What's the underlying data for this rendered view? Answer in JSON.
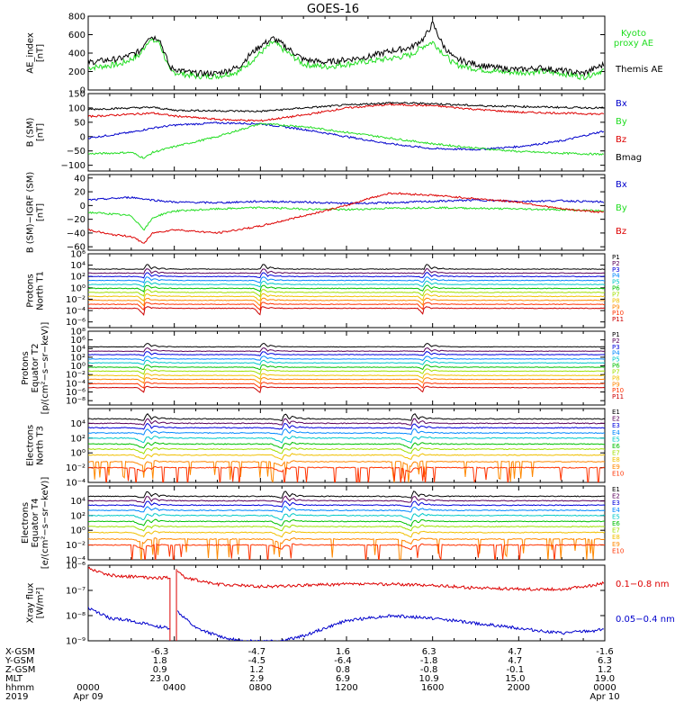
{
  "title": "GOES-16",
  "colors": {
    "black": "#000000",
    "green": "#22dd22",
    "blue": "#0000cc",
    "red": "#dd0000",
    "protons": [
      "#000000",
      "#5a005a",
      "#0000dd",
      "#0088ff",
      "#00c8c8",
      "#00c000",
      "#a0e000",
      "#f0c000",
      "#ff8800",
      "#ff3300",
      "#cc0000"
    ],
    "electrons": [
      "#000000",
      "#5a005a",
      "#0000dd",
      "#0088ff",
      "#00c8c8",
      "#00c000",
      "#a0e000",
      "#f0c000",
      "#ff8800",
      "#ff3300",
      "#cc0000"
    ]
  },
  "chart_data": [
    {
      "id": "ae",
      "type": "line",
      "ylabel": "AE_index\n[nT]",
      "ylim": [
        0,
        800
      ],
      "yticks": [
        "0",
        "200",
        "400",
        "600",
        "800"
      ],
      "series": [
        {
          "name": "Kyoto\nproxy AE",
          "color": "#22dd22",
          "x": [
            0,
            1.5,
            2.4,
            2.8,
            3.3,
            3.8,
            4.5,
            5,
            6,
            7,
            7.5,
            8,
            8.6,
            9,
            10,
            11,
            12,
            13,
            14,
            15,
            15.6,
            16,
            16.5,
            17,
            18,
            19,
            20,
            21,
            22,
            23,
            24
          ],
          "y": [
            240,
            280,
            380,
            540,
            520,
            200,
            170,
            150,
            150,
            200,
            300,
            400,
            520,
            450,
            280,
            250,
            280,
            310,
            340,
            380,
            480,
            520,
            400,
            280,
            230,
            200,
            190,
            200,
            180,
            140,
            220
          ]
        },
        {
          "name": "Themis AE",
          "color": "#000000",
          "x": [
            0,
            1.5,
            2.4,
            2.8,
            3.3,
            3.8,
            4.5,
            5,
            6,
            7,
            7.5,
            8,
            8.6,
            9,
            10,
            11,
            12,
            13,
            14,
            15,
            15.6,
            16,
            16.5,
            17,
            18,
            19,
            20,
            21,
            22,
            23,
            24
          ],
          "y": [
            300,
            340,
            420,
            580,
            560,
            240,
            200,
            180,
            180,
            250,
            380,
            480,
            560,
            500,
            330,
            300,
            330,
            360,
            420,
            460,
            560,
            720,
            480,
            340,
            280,
            240,
            220,
            240,
            210,
            180,
            280
          ]
        }
      ]
    },
    {
      "id": "bsm",
      "type": "line",
      "ylabel": "B (SM)\n[nT]",
      "ylim": [
        -120,
        150
      ],
      "yticks": [
        "150",
        "100",
        "50",
        "0",
        "−50",
        "−100"
      ],
      "series": [
        {
          "name": "Bx",
          "color": "#0000cc",
          "x": [
            0,
            1,
            2,
            3,
            4,
            6,
            8,
            10,
            12,
            14,
            16,
            18,
            20,
            22,
            24
          ],
          "y": [
            -5,
            5,
            15,
            30,
            40,
            48,
            45,
            25,
            0,
            -25,
            -42,
            -45,
            -35,
            -15,
            20
          ]
        },
        {
          "name": "By",
          "color": "#22dd22",
          "x": [
            0,
            1,
            2,
            2.6,
            3,
            4,
            6,
            8,
            10,
            12,
            14,
            16,
            18,
            20,
            22,
            24
          ],
          "y": [
            -60,
            -58,
            -55,
            -75,
            -55,
            -35,
            0,
            45,
            35,
            15,
            -5,
            -25,
            -40,
            -52,
            -58,
            -62
          ]
        },
        {
          "name": "Bz",
          "color": "#dd0000",
          "x": [
            0,
            2,
            3,
            4,
            6,
            8,
            10,
            12,
            14,
            16,
            18,
            20,
            22,
            24
          ],
          "y": [
            70,
            78,
            82,
            72,
            60,
            55,
            75,
            100,
            112,
            108,
            95,
            85,
            82,
            78
          ]
        },
        {
          "name": "Bmag",
          "color": "#000000",
          "x": [
            0,
            2,
            3,
            4,
            6,
            8,
            10,
            12,
            14,
            16,
            18,
            20,
            22,
            24
          ],
          "y": [
            95,
            100,
            102,
            92,
            90,
            88,
            100,
            110,
            118,
            115,
            108,
            105,
            102,
            100
          ]
        }
      ]
    },
    {
      "id": "bdiff",
      "type": "line",
      "ylabel": "B (SM)−IGRF (SM)\n[nT]",
      "ylim": [
        -65,
        45
      ],
      "yticks": [
        "40",
        "20",
        "0",
        "−20",
        "−40",
        "−60"
      ],
      "series": [
        {
          "name": "Bx",
          "color": "#0000cc",
          "x": [
            0,
            1,
            2,
            3,
            4,
            6,
            8,
            10,
            12,
            14,
            16,
            18,
            20,
            22,
            24
          ],
          "y": [
            8,
            10,
            12,
            8,
            5,
            4,
            6,
            5,
            3,
            4,
            6,
            8,
            6,
            7,
            5
          ]
        },
        {
          "name": "By",
          "color": "#22dd22",
          "x": [
            0,
            1,
            2,
            2.6,
            3,
            3.5,
            4,
            6,
            8,
            10,
            12,
            14,
            16,
            18,
            20,
            22,
            24
          ],
          "y": [
            -10,
            -12,
            -15,
            -35,
            -18,
            -12,
            -8,
            -5,
            -3,
            -5,
            -6,
            -4,
            -3,
            -4,
            -5,
            -6,
            -8
          ]
        },
        {
          "name": "Bz",
          "color": "#dd0000",
          "x": [
            0,
            1,
            2,
            2.6,
            3,
            4,
            6,
            8,
            10,
            12,
            13,
            14,
            16,
            18,
            20,
            22,
            24
          ],
          "y": [
            -35,
            -42,
            -45,
            -55,
            -40,
            -35,
            -40,
            -30,
            -15,
            0,
            10,
            18,
            15,
            10,
            5,
            -5,
            -10
          ]
        }
      ]
    },
    {
      "id": "p1",
      "type": "line",
      "log": true,
      "ylabel": "Protons\nNorth T1",
      "ylim": [
        -7,
        6
      ],
      "yticks": [
        "10⁶",
        "10⁴",
        "10²",
        "10⁰",
        "10⁻²",
        "10⁻⁴",
        "10⁻⁶"
      ],
      "channels": [
        "P1",
        "P2",
        "P3",
        "P4",
        "P5",
        "P6",
        "P7",
        "P8",
        "P9",
        "P10",
        "P11"
      ],
      "levels": [
        3.3,
        2.6,
        2.0,
        1.3,
        0.6,
        -0.1,
        -0.8,
        -1.5,
        -2.2,
        -2.9,
        -3.6
      ],
      "injections": [
        2.6,
        8.0,
        15.6
      ]
    },
    {
      "id": "p2",
      "type": "line",
      "log": true,
      "ylabel": "Protons\nEquator T2\n[p/(cm²−s−sr−keV)]",
      "ylim": [
        -9,
        8
      ],
      "yticks": [
        "10⁸",
        "10⁶",
        "10⁴",
        "10²",
        "10⁰",
        "10⁻²",
        "10⁻⁴",
        "10⁻⁶",
        "10⁻⁸"
      ],
      "channels": [
        "P1",
        "P2",
        "P3",
        "P4",
        "P5",
        "P6",
        "P7",
        "P8",
        "P9",
        "P10",
        "P11"
      ],
      "levels": [
        4.4,
        3.4,
        2.6,
        1.6,
        0.7,
        -0.3,
        -1.2,
        -2.2,
        -3.1,
        -4.1,
        -5.0
      ],
      "injections": [
        2.6,
        8.0,
        15.6
      ]
    },
    {
      "id": "e1",
      "type": "line",
      "log": true,
      "ylabel": "Electrons\nNorth T3",
      "ylim": [
        -4,
        6
      ],
      "yticks": [
        "10⁴",
        "10²",
        "10⁰",
        "10⁻²",
        "10⁻⁴"
      ],
      "channels": [
        "E1",
        "E2",
        "E3",
        "E4",
        "E5",
        "E6",
        "E7",
        "E8",
        "E9",
        "E10"
      ],
      "levels": [
        4.6,
        4.0,
        3.4,
        2.7,
        2.0,
        1.2,
        0.5,
        -0.3,
        -1.2,
        -2.0
      ],
      "injections": [
        2.6,
        9.0,
        15.0
      ]
    },
    {
      "id": "e2",
      "type": "line",
      "log": true,
      "ylabel": "Electrons\nEquator T4\n[e/(cm²−s−sr−keV)]",
      "ylim": [
        -4,
        6
      ],
      "yticks": [
        "10⁴",
        "10²",
        "10⁰",
        "10⁻²",
        "10⁻⁴"
      ],
      "channels": [
        "E1",
        "E2",
        "E3",
        "E4",
        "E5",
        "E6",
        "E7",
        "E8",
        "E9",
        "E10"
      ],
      "levels": [
        4.6,
        4.0,
        3.4,
        2.7,
        2.0,
        1.2,
        0.5,
        -0.3,
        -1.2,
        -2.0
      ],
      "injections": [
        2.6,
        9.0,
        15.0
      ]
    },
    {
      "id": "xray",
      "type": "line",
      "log": true,
      "ylabel": "Xray flux\n[W/m²]",
      "ylim": [
        -9,
        -6
      ],
      "yticks": [
        "10⁻⁶",
        "10⁻⁷",
        "10⁻⁸",
        "10⁻⁹"
      ],
      "gap": [
        3.8,
        4.1
      ],
      "series": [
        {
          "name": "0.1−0.8 nm",
          "color": "#dd0000",
          "x": [
            0,
            0.5,
            1,
            2,
            3,
            3.8,
            4.1,
            4.5,
            6,
            8,
            10,
            12,
            14,
            16,
            18,
            20,
            22,
            23.5,
            24
          ],
          "y": [
            -6.1,
            -6.25,
            -6.4,
            -6.45,
            -6.5,
            -6.5,
            -6.15,
            -6.5,
            -6.75,
            -6.85,
            -6.8,
            -6.75,
            -6.75,
            -6.8,
            -6.9,
            -6.95,
            -6.95,
            -6.8,
            -6.7
          ]
        },
        {
          "name": "0.05−0.4 nm",
          "color": "#0000cc",
          "x": [
            0,
            0.5,
            1,
            2,
            3,
            3.8,
            4.1,
            5,
            6,
            7,
            8,
            9,
            10,
            12,
            14,
            16,
            18,
            20,
            22,
            23.5,
            24
          ],
          "y": [
            -7.7,
            -7.9,
            -8.1,
            -8.2,
            -8.4,
            -8.5,
            -7.8,
            -8.5,
            -8.8,
            -9.0,
            -9.0,
            -9.0,
            -8.8,
            -8.2,
            -8.0,
            -8.1,
            -8.3,
            -8.5,
            -8.7,
            -8.6,
            -8.5
          ]
        }
      ]
    }
  ],
  "footer": {
    "rows": [
      {
        "label": "X-GSM",
        "values": [
          "-6.3",
          "-4.7",
          "1.6",
          "6.3",
          "4.7",
          "-1.6"
        ]
      },
      {
        "label": "Y-GSM",
        "values": [
          "1.8",
          "-4.5",
          "-6.4",
          "-1.8",
          "4.7",
          "6.3"
        ]
      },
      {
        "label": "Z-GSM",
        "values": [
          "0.9",
          "1.2",
          "0.8",
          "-0.8",
          "-0.1",
          "1.2"
        ]
      },
      {
        "label": "MLT",
        "values": [
          "23.0",
          "2.9",
          "6.9",
          "10.9",
          "15.0",
          "19.0"
        ]
      }
    ],
    "hhmm_label": "hhmm",
    "hhmm": [
      "0000",
      "0400",
      "0800",
      "1200",
      "1600",
      "2000",
      "0000"
    ],
    "year_label": "2019",
    "date_start": "Apr 09",
    "date_end": "Apr 10"
  }
}
